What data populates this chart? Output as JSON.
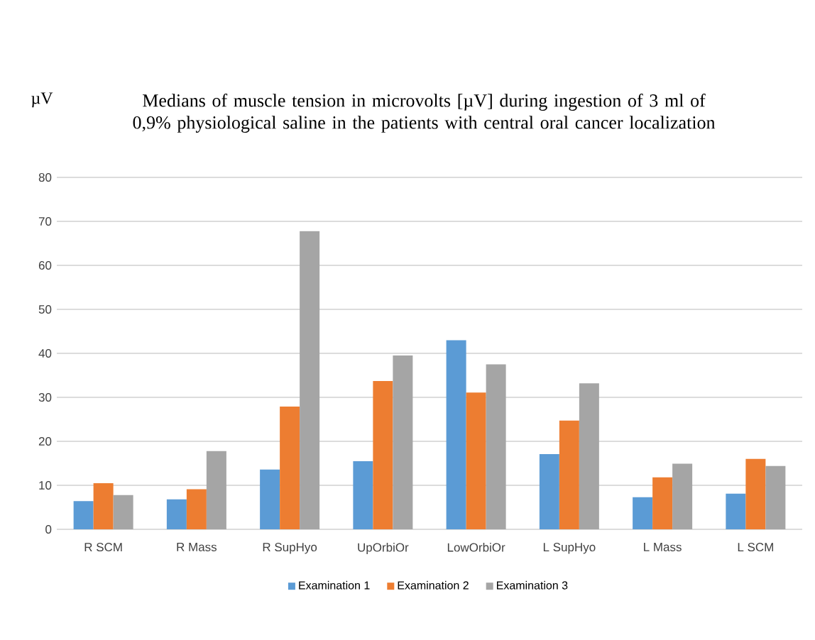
{
  "chart_data": {
    "type": "bar",
    "title": "Medians of muscle tension in microvolts [µV] during ingestion of 3 ml of 0,9% physiological saline in the patients with  central oral cancer localization",
    "ylabel": "µV",
    "categories": [
      "R SCM",
      "R Mass",
      "R SupHyo",
      "UpOrbiOr",
      "LowOrbiOr",
      "L SupHyo",
      "L Mass",
      "L SCM"
    ],
    "series": [
      {
        "name": "Examination 1",
        "color": "#5b9bd5",
        "values": [
          6.4,
          6.8,
          13.6,
          15.5,
          43.0,
          17.1,
          7.3,
          8.1
        ]
      },
      {
        "name": "Examination 2",
        "color": "#ed7d31",
        "values": [
          10.5,
          9.1,
          27.9,
          33.7,
          31.1,
          24.7,
          11.8,
          16.0
        ]
      },
      {
        "name": "Examination 3",
        "color": "#a5a5a5",
        "values": [
          7.8,
          17.8,
          67.8,
          39.5,
          37.5,
          33.2,
          14.9,
          14.4
        ]
      }
    ],
    "ylim": [
      0,
      80
    ],
    "yticks": [
      0,
      10,
      20,
      30,
      40,
      50,
      60,
      70,
      80
    ],
    "grid": "y",
    "legend": "bottom"
  }
}
